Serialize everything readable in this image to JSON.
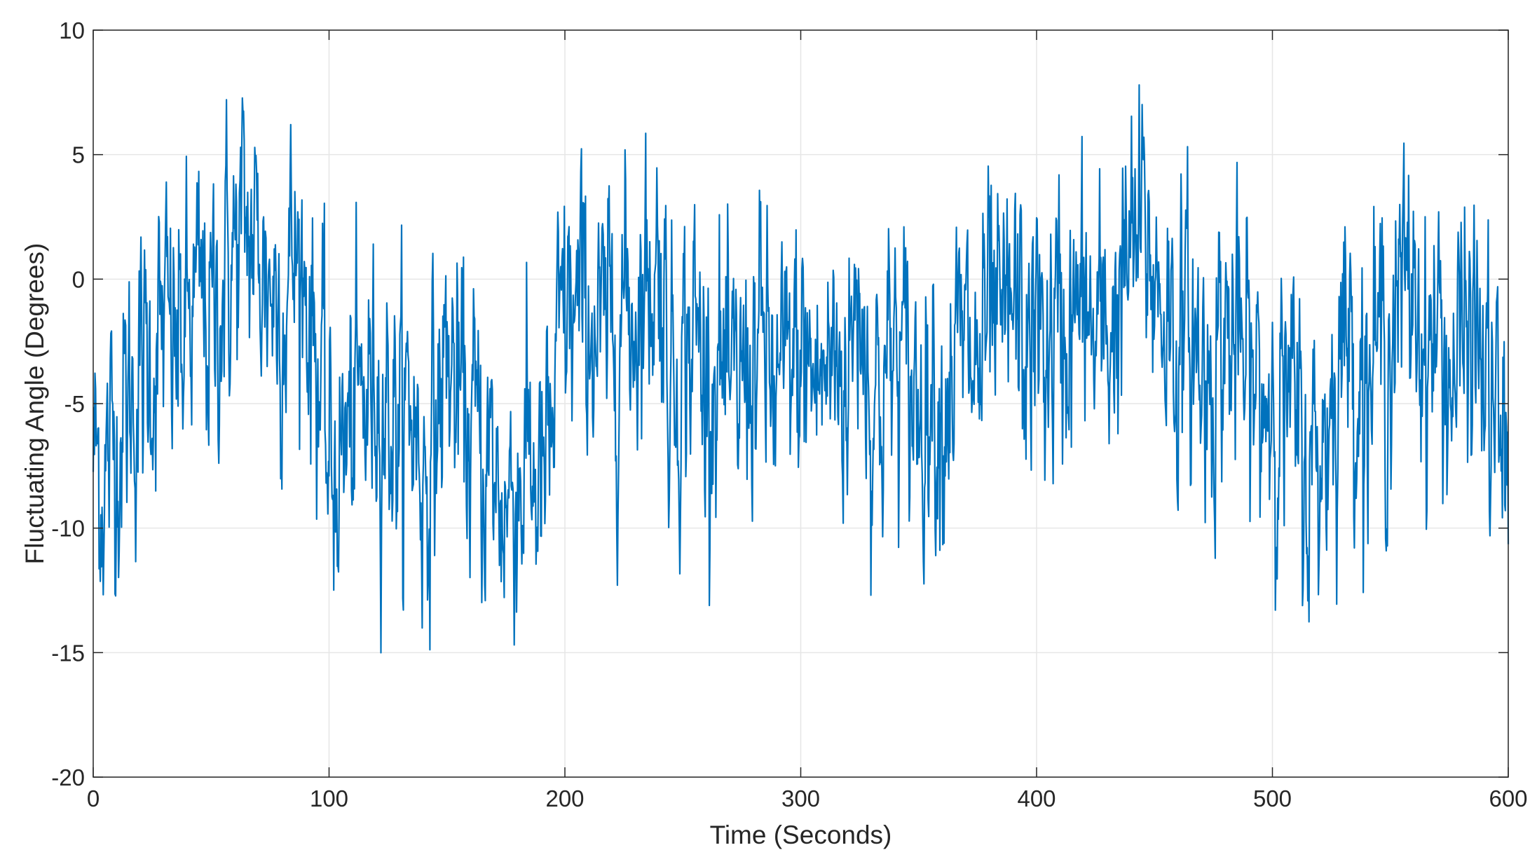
{
  "chart_data": {
    "type": "line",
    "title": "",
    "xlabel": "Time (Seconds)",
    "ylabel": "Fluctuating Angle (Degrees)",
    "xlim": [
      0,
      600
    ],
    "ylim": [
      -20,
      10
    ],
    "xticks": [
      0,
      100,
      200,
      300,
      400,
      500,
      600
    ],
    "yticks": [
      -20,
      -15,
      -10,
      -5,
      0,
      5,
      10
    ],
    "xtick_labels": [
      "0",
      "100",
      "200",
      "300",
      "400",
      "500",
      "600"
    ],
    "ytick_labels": [
      "-20",
      "-15",
      "-10",
      "-5",
      "0",
      "5",
      "10"
    ],
    "grid": true,
    "line_color": "#0072BD",
    "series": [
      {
        "x": [
          0,
          5,
          10,
          15,
          20,
          25,
          30,
          35,
          40,
          45,
          50,
          55,
          60,
          65,
          70,
          75,
          80,
          85,
          90,
          95,
          100,
          105,
          110,
          115,
          120,
          125,
          130,
          135,
          140,
          145,
          150,
          155,
          160,
          165,
          170,
          175,
          180,
          185,
          190,
          195,
          200,
          205,
          210,
          215,
          220,
          225,
          230,
          235,
          240,
          245,
          250,
          255,
          260,
          265,
          270,
          275,
          280,
          285,
          290,
          295,
          300,
          305,
          310,
          315,
          320,
          325,
          330,
          335,
          340,
          345,
          350,
          355,
          360,
          365,
          370,
          375,
          380,
          385,
          390,
          395,
          400,
          405,
          410,
          415,
          420,
          425,
          430,
          435,
          440,
          445,
          450,
          455,
          460,
          465,
          470,
          475,
          480,
          485,
          490,
          495,
          500,
          505,
          510,
          515,
          520,
          525,
          530,
          535,
          540,
          545,
          550,
          555,
          560,
          565,
          570,
          575,
          580,
          585,
          590,
          595,
          600
        ],
        "y": [
          -7,
          -8,
          -6,
          -5,
          -4,
          -3,
          -2,
          -3,
          -2,
          -1,
          -2,
          0,
          1,
          2,
          1,
          0,
          -1,
          1,
          0,
          -3,
          -8,
          -7,
          -6,
          -5,
          -4,
          -5,
          -6,
          -5,
          -8,
          -6,
          -3,
          -5,
          -6,
          -7,
          -8,
          -9,
          -8,
          -7,
          -9,
          -6,
          -1,
          -2,
          -1,
          -3,
          -2,
          -1,
          -1,
          0,
          1,
          -4,
          -3,
          -2,
          -4,
          -3,
          -6,
          -4,
          -3,
          -3,
          -5,
          -4,
          -3,
          -4,
          -4,
          -3,
          -4,
          0,
          -5,
          -4,
          -3,
          -4,
          -5,
          -4,
          -5,
          -3,
          -3,
          -4,
          -2,
          -3,
          -1,
          -3,
          -2,
          -3,
          -2,
          -2,
          -1,
          -3,
          -2,
          -1,
          1,
          2,
          0,
          -1,
          -3,
          -2,
          -4,
          -3,
          -2,
          -3,
          -4,
          -5,
          -4,
          -5,
          -6,
          -8,
          -7,
          -5,
          -2,
          -3,
          -4,
          -3,
          -2,
          -1,
          0,
          -3,
          -2,
          -4,
          -3,
          -2,
          -4,
          -6,
          -8
        ]
      }
    ]
  }
}
